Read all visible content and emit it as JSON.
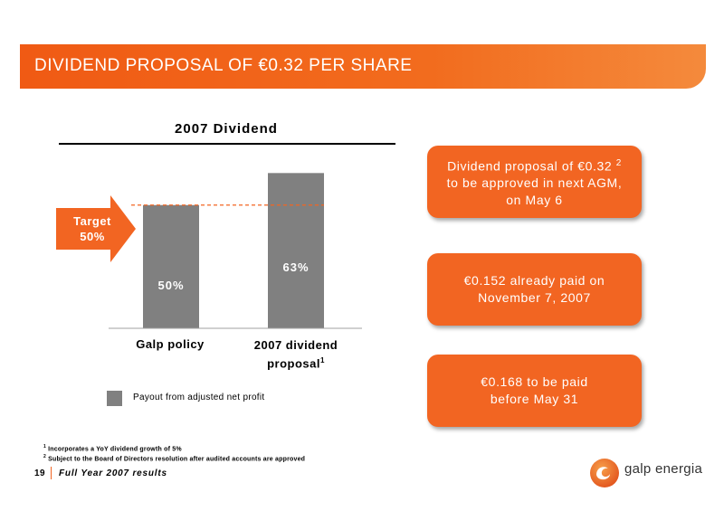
{
  "slide_title": "DIVIDEND PROPOSAL OF €0.32 PER SHARE",
  "target_label": [
    "Target",
    "50%"
  ],
  "chart_data": {
    "type": "bar",
    "title": "2007 Dividend",
    "categories": [
      "Galp policy",
      "2007 dividend proposal"
    ],
    "category_superscripts": [
      "",
      "1"
    ],
    "values": [
      50,
      63
    ],
    "value_labels": [
      "50%",
      "63%"
    ],
    "reference_line": 50,
    "series": [
      {
        "name": "Payout from adjusted net profit",
        "values": [
          50,
          63
        ]
      }
    ],
    "xlabel": "",
    "ylabel": "",
    "ylim": [
      0,
      80
    ],
    "grid": false,
    "legend": "bottom-left",
    "colors": {
      "bar": "#808080",
      "reference_line": "#f26522",
      "arrow": "#f26522"
    }
  },
  "callouts": [
    {
      "lines": [
        "Dividend proposal of €0.32",
        "to be approved in next AGM,",
        "on May 6"
      ],
      "superscript": "2"
    },
    {
      "lines": [
        "€0.152 already paid on",
        "November 7, 2007"
      ]
    },
    {
      "lines": [
        "€0.168 to be paid",
        "before May 31"
      ]
    }
  ],
  "footnotes": [
    {
      "mark": "1",
      "text": "Incorporates a YoY dividend growth of 5%"
    },
    {
      "mark": "2",
      "text": "Subject to the Board of Directors resolution after audited accounts are approved"
    }
  ],
  "footer": {
    "page": "19",
    "text": "Full Year 2007 results"
  },
  "logo": {
    "text": "galp energia"
  },
  "colors": {
    "accent": "#f26522",
    "bar": "#808080"
  }
}
